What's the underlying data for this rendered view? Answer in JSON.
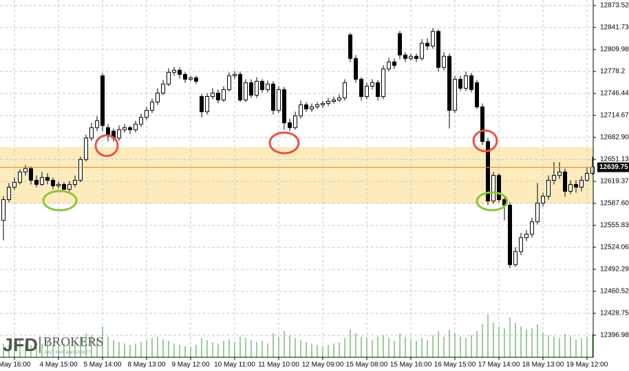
{
  "chart_data": {
    "type": "candlestick",
    "brand": "JFD",
    "brand_name": "BROKERS",
    "brand_tagline": "JUST FAIR AND DIRECT",
    "categories": [
      null,
      null,
      "May 16:00",
      null,
      null,
      null,
      null,
      null,
      null,
      null,
      "4 May 15:00",
      null,
      null,
      null,
      null,
      null,
      null,
      null,
      "5 May 14:00",
      null,
      null,
      null,
      null,
      null,
      null,
      null,
      "8 May 13:00",
      null,
      null,
      null,
      null,
      null,
      null,
      null,
      "9 May 12:00",
      null,
      null,
      null,
      null,
      null,
      null,
      null,
      "10 May 11:00",
      null,
      null,
      null,
      null,
      null,
      null,
      null,
      "11 May 10:00",
      null,
      null,
      null,
      null,
      null,
      null,
      null,
      "12 May 09:00",
      null,
      null,
      null,
      null,
      null,
      null,
      null,
      "15 May 08:00",
      null,
      null,
      null,
      null,
      null,
      null,
      null,
      "15 May 16:00",
      null,
      null,
      null,
      null,
      null,
      null,
      null,
      "16 May 15:00",
      null,
      null,
      null,
      null,
      null,
      null,
      null,
      "17 May 14:00",
      null,
      null,
      null,
      null,
      null,
      null,
      null,
      "18 May 13:00",
      null,
      null,
      null,
      null,
      null,
      null,
      null,
      "19 May 12:00",
      null
    ],
    "open": [
      12563,
      12593,
      12611,
      12618,
      12633,
      12638,
      12621,
      12615,
      12625,
      12621,
      12613,
      12615,
      12608,
      12615,
      12621,
      12651,
      12682,
      12697,
      12772,
      12697,
      12692,
      12682,
      12694,
      12697,
      12694,
      12702,
      12712,
      12722,
      12734,
      12747,
      12760,
      12777,
      12780,
      12774,
      12767,
      12769,
      12742,
      12720,
      12742,
      12747,
      12737,
      12752,
      12772,
      12774,
      12737,
      12762,
      12744,
      12764,
      12752,
      12760,
      12722,
      12752,
      12704,
      12697,
      12714,
      12730,
      12724,
      12727,
      12730,
      12732,
      12735,
      12737,
      12740,
      12831,
      12797,
      12767,
      12742,
      12757,
      12762,
      12742,
      12782,
      12792,
      12833,
      12802,
      12797,
      12800,
      12797,
      12819,
      12815,
      12836,
      12784,
      12800,
      12722,
      12767,
      12754,
      12772,
      12762,
      12727,
      12677,
      12591,
      12628,
      12593,
      12585,
      12499,
      12518,
      12538,
      12543,
      12561,
      12588,
      12598,
      12621,
      12628,
      12633,
      12605,
      12615,
      12611,
      12621,
      12631
    ],
    "high": [
      12598,
      12617,
      12625,
      12637,
      12643,
      12641,
      12628,
      12633,
      12631,
      12625,
      12619,
      12618,
      12620,
      12628,
      12655,
      12687,
      12704,
      12714,
      12776,
      12702,
      12696,
      12700,
      12702,
      12700,
      12707,
      12717,
      12727,
      12739,
      12754,
      12766,
      12783,
      12785,
      12784,
      12777,
      12772,
      12772,
      12746,
      12747,
      12754,
      12752,
      12757,
      12777,
      12779,
      12778,
      12767,
      12767,
      12770,
      12767,
      12765,
      12764,
      12757,
      12756,
      12710,
      12720,
      12736,
      12734,
      12732,
      12734,
      12736,
      12740,
      12742,
      12745,
      12767,
      12834,
      12802,
      12770,
      12762,
      12767,
      12766,
      12787,
      12798,
      12797,
      12837,
      12806,
      12804,
      12804,
      12825,
      12826,
      12841,
      12839,
      12806,
      12804,
      12772,
      12772,
      12778,
      12776,
      12766,
      12732,
      12682,
      12633,
      12631,
      12597,
      12589,
      12524,
      12545,
      12549,
      12567,
      12617,
      12603,
      12628,
      12647,
      12647,
      12638,
      12621,
      12621,
      12627,
      12639,
      12655
    ],
    "low": [
      12534,
      12589,
      12607,
      12615,
      12628,
      12615,
      12611,
      12613,
      12615,
      12608,
      12609,
      12604,
      12605,
      12611,
      12618,
      12648,
      12678,
      12692,
      12692,
      12677,
      12677,
      12678,
      12690,
      12688,
      12690,
      12698,
      12708,
      12718,
      12730,
      12744,
      12757,
      12772,
      12768,
      12762,
      12764,
      12760,
      12712,
      12716,
      12738,
      12732,
      12734,
      12749,
      12767,
      12734,
      12734,
      12740,
      12740,
      12748,
      12748,
      12716,
      12718,
      12694,
      12692,
      12694,
      12710,
      12720,
      12720,
      12724,
      12726,
      12728,
      12732,
      12734,
      12736,
      12792,
      12762,
      12736,
      12738,
      12752,
      12736,
      12738,
      12778,
      12782,
      12796,
      12792,
      12794,
      12792,
      12794,
      12809,
      12811,
      12778,
      12780,
      12696,
      12718,
      12750,
      12750,
      12748,
      12724,
      12672,
      12585,
      12587,
      12589,
      12563,
      12494,
      12496,
      12513,
      12533,
      12538,
      12557,
      12583,
      12593,
      12615,
      12623,
      12597,
      12601,
      12603,
      12605,
      12619,
      12629
    ],
    "close": [
      12593,
      12611,
      12618,
      12633,
      12638,
      12621,
      12615,
      12625,
      12621,
      12613,
      12615,
      12608,
      12615,
      12621,
      12651,
      12682,
      12697,
      12707,
      12700,
      12687,
      12682,
      12694,
      12697,
      12694,
      12702,
      12712,
      12722,
      12734,
      12747,
      12760,
      12777,
      12780,
      12774,
      12767,
      12769,
      12764,
      12720,
      12742,
      12747,
      12737,
      12752,
      12772,
      12774,
      12737,
      12762,
      12744,
      12764,
      12752,
      12760,
      12722,
      12752,
      12704,
      12697,
      12714,
      12730,
      12724,
      12727,
      12730,
      12732,
      12735,
      12737,
      12740,
      12762,
      12797,
      12767,
      12742,
      12757,
      12762,
      12742,
      12782,
      12792,
      12787,
      12802,
      12797,
      12800,
      12797,
      12819,
      12815,
      12836,
      12784,
      12800,
      12722,
      12767,
      12754,
      12772,
      12752,
      12727,
      12677,
      12591,
      12628,
      12593,
      12585,
      12499,
      12518,
      12538,
      12543,
      12561,
      12588,
      12598,
      12621,
      12628,
      12633,
      12605,
      12615,
      12611,
      12621,
      12631,
      12640
    ],
    "volume": [
      20,
      18,
      22,
      25,
      20,
      18,
      15,
      20,
      22,
      18,
      16,
      20,
      18,
      22,
      30,
      35,
      32,
      28,
      45,
      30,
      25,
      22,
      20,
      18,
      20,
      22,
      25,
      28,
      30,
      26,
      24,
      20,
      18,
      16,
      15,
      18,
      28,
      25,
      22,
      20,
      24,
      26,
      22,
      30,
      28,
      25,
      22,
      24,
      20,
      35,
      30,
      38,
      32,
      28,
      25,
      22,
      20,
      18,
      16,
      18,
      20,
      22,
      28,
      40,
      35,
      30,
      28,
      25,
      30,
      32,
      28,
      24,
      35,
      30,
      26,
      24,
      28,
      25,
      32,
      38,
      30,
      40,
      35,
      30,
      28,
      32,
      38,
      48,
      62,
      50,
      45,
      42,
      58,
      50,
      45,
      40,
      42,
      48,
      36,
      32,
      30,
      28,
      34,
      30,
      26,
      28,
      30,
      34
    ],
    "up_color": "#ffffff",
    "down_color": "#000000",
    "volume_color": "#3a9a3a",
    "current_price": 12639.75,
    "current_price_color": "#d98c2b",
    "highlight_zone": [
      12587.6,
      12669.0
    ],
    "zone_color": "#fbd77a",
    "ylim": [
      12365.2,
      12881.5
    ],
    "yticks": [
      12873.52,
      12841.73,
      12809.98,
      {
        "value": 12778.21,
        "label": "12778.2"
      },
      12746.44,
      12714.67,
      {
        "value": 12682.9,
        "label": "12682.90"
      },
      12651.13,
      12619.37,
      {
        "value": 12587.6,
        "label": "12587.60"
      },
      12555.83,
      12524.06,
      12492.29,
      12460.52,
      12428.75,
      12396.98
    ],
    "grid": true
  }
}
